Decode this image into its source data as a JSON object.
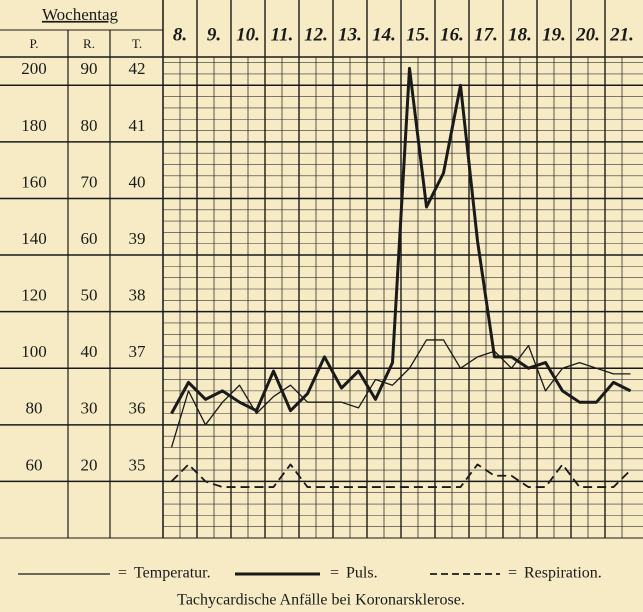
{
  "chart_data": {
    "type": "line",
    "title": "Tachycardische Anfälle bei Koronarsklerose.",
    "xlabel": "Wochentag",
    "ylabel": "P.",
    "y2label": "R.",
    "y3label": "T.",
    "legend_separator": "=",
    "categories": [
      "8.",
      null,
      "9.",
      null,
      "10.",
      null,
      "11.",
      null,
      "12.",
      null,
      "13.",
      null,
      "14.",
      null,
      "15.",
      null,
      "16.",
      null,
      "17.",
      null,
      "18.",
      null,
      "19.",
      null,
      "20.",
      null,
      "21.",
      null
    ],
    "ylim": [
      40,
      210
    ],
    "yticks": [
      60,
      80,
      100,
      120,
      140,
      160,
      180,
      200
    ],
    "y2lim": [
      10,
      95
    ],
    "y2ticks": [
      20,
      30,
      40,
      50,
      60,
      70,
      80,
      90
    ],
    "y3lim": [
      34,
      42.5
    ],
    "y3ticks": [
      35,
      36,
      37,
      38,
      39,
      40,
      41,
      42
    ],
    "grid": true,
    "series": [
      {
        "name": "Temperatur.",
        "color": "#1a1a1a",
        "axis": "y3",
        "line_width": 1.3,
        "dashed": false,
        "values": [
          35.6,
          36.6,
          36.0,
          36.4,
          36.7,
          36.2,
          36.5,
          36.7,
          36.4,
          36.4,
          36.4,
          36.3,
          36.8,
          36.7,
          37.0,
          37.5,
          37.5,
          37.0,
          37.2,
          37.3,
          37.0,
          37.4,
          36.6,
          37.0,
          37.1,
          37.0,
          36.9,
          36.9
        ]
      },
      {
        "name": "Puls.",
        "color": "#1a1a1a",
        "axis": "y",
        "line_width": 3,
        "dashed": false,
        "values": [
          84,
          95,
          89,
          92,
          88,
          85,
          99,
          85,
          91,
          104,
          93,
          99,
          89,
          102,
          206,
          157,
          169,
          200,
          145,
          104,
          104,
          100,
          102,
          92,
          88,
          88,
          95,
          92
        ]
      },
      {
        "name": "Respiration.",
        "color": "#1a1a1a",
        "axis": "y2",
        "line_width": 1.8,
        "dashed": true,
        "values": [
          20,
          23,
          20,
          19,
          19,
          19,
          19,
          23,
          19,
          19,
          19,
          19,
          19,
          19,
          19,
          19,
          19,
          19,
          23,
          21,
          21,
          19,
          19,
          23,
          19,
          19,
          19,
          22
        ]
      }
    ]
  }
}
